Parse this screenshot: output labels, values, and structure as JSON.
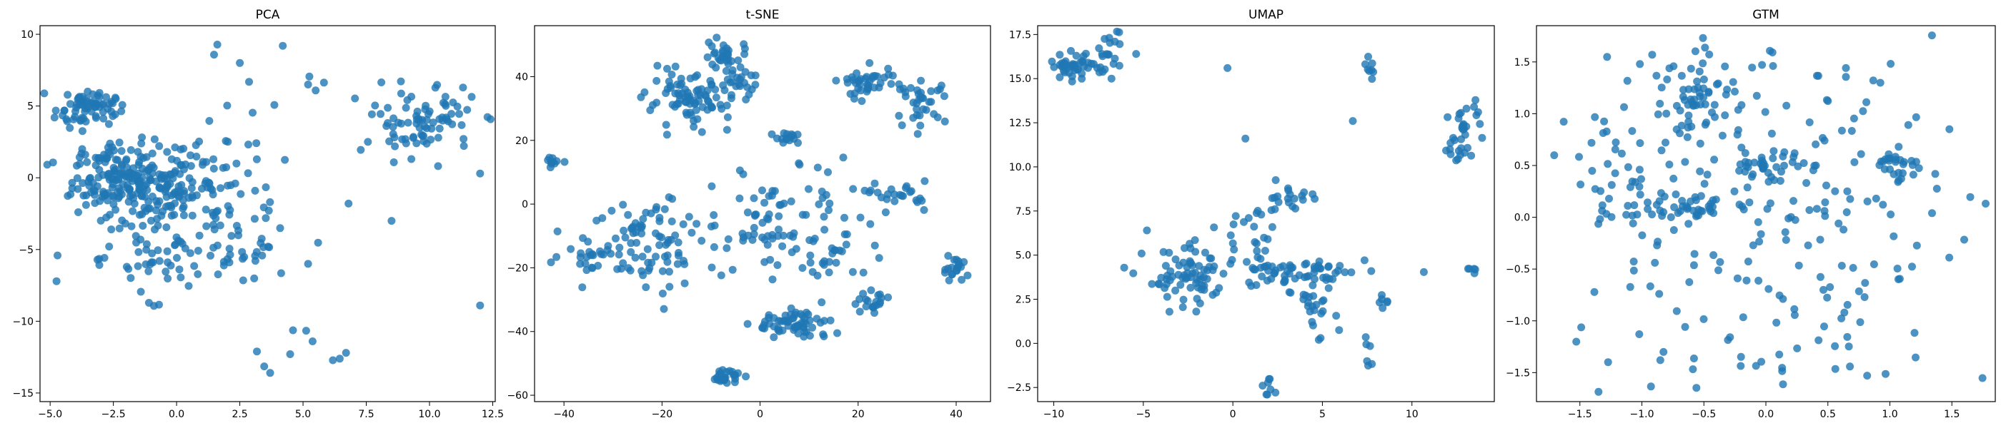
{
  "chart_data": [
    {
      "type": "scatter",
      "title": "PCA",
      "color": "#1f77b4",
      "xlim": [
        -5.4,
        12.6
      ],
      "ylim": [
        -15.6,
        10.6
      ],
      "xticks": [
        {
          "v": -5.0,
          "label": "−5.0"
        },
        {
          "v": -2.5,
          "label": "−2.5"
        },
        {
          "v": 0.0,
          "label": "0.0"
        },
        {
          "v": 2.5,
          "label": "2.5"
        },
        {
          "v": 5.0,
          "label": "5.0"
        },
        {
          "v": 7.5,
          "label": "7.5"
        },
        {
          "v": 10.0,
          "label": "10.0"
        },
        {
          "v": 12.5,
          "label": "12.5"
        }
      ],
      "yticks": [
        {
          "v": -15,
          "label": "−15"
        },
        {
          "v": -10,
          "label": "−10"
        },
        {
          "v": -5,
          "label": "−5"
        },
        {
          "v": 0,
          "label": "0"
        },
        {
          "v": 5,
          "label": "5"
        },
        {
          "v": 10,
          "label": "10"
        }
      ],
      "clusters": [
        {
          "x": -0.5,
          "y": -0.5,
          "sx": 1.8,
          "sy": 1.5,
          "n": 220
        },
        {
          "x": -3.6,
          "y": 4.9,
          "sx": 0.6,
          "sy": 0.6,
          "n": 70
        },
        {
          "x": -2.5,
          "y": 0.0,
          "sx": 1.0,
          "sy": 1.2,
          "n": 80
        },
        {
          "x": -1.0,
          "y": -5.5,
          "sx": 1.5,
          "sy": 1.3,
          "n": 60
        },
        {
          "x": 2.5,
          "y": -5.0,
          "sx": 1.2,
          "sy": 1.5,
          "n": 30
        },
        {
          "x": 9.8,
          "y": 4.0,
          "sx": 1.0,
          "sy": 1.2,
          "n": 80
        },
        {
          "x": 4.5,
          "y": 5.5,
          "sx": 2.0,
          "sy": 2.0,
          "n": 14
        },
        {
          "x": 5.0,
          "y": -12.5,
          "sx": 1.0,
          "sy": 1.0,
          "n": 8
        }
      ],
      "points": [
        [
          3.7,
          -13.6
        ],
        [
          12.0,
          -8.9
        ],
        [
          6.7,
          -12.2
        ],
        [
          8.5,
          -3.0
        ],
        [
          12.0,
          0.3
        ],
        [
          4.2,
          9.2
        ],
        [
          2.5,
          8.0
        ],
        [
          5.2,
          6.5
        ],
        [
          6.8,
          -1.8
        ],
        [
          5.2,
          -6.0
        ]
      ]
    },
    {
      "type": "scatter",
      "title": "t-SNE",
      "color": "#1f77b4",
      "xlim": [
        -46,
        47
      ],
      "ylim": [
        -62,
        56
      ],
      "xticks": [
        {
          "v": -40,
          "label": "−40"
        },
        {
          "v": -20,
          "label": "−20"
        },
        {
          "v": 0,
          "label": "0"
        },
        {
          "v": 20,
          "label": "20"
        },
        {
          "v": 40,
          "label": "40"
        }
      ],
      "yticks": [
        {
          "v": -60,
          "label": "−60"
        },
        {
          "v": -40,
          "label": "−40"
        },
        {
          "v": -20,
          "label": "−20"
        },
        {
          "v": 0,
          "label": "0"
        },
        {
          "v": 20,
          "label": "20"
        },
        {
          "v": 40,
          "label": "40"
        }
      ],
      "clusters": [
        {
          "x": -7,
          "y": 47,
          "sx": 2.5,
          "sy": 2.5,
          "n": 30
        },
        {
          "x": -15,
          "y": 32,
          "sx": 4.0,
          "sy": 4.0,
          "n": 80
        },
        {
          "x": -5,
          "y": 38,
          "sx": 2.0,
          "sy": 2.0,
          "n": 25
        },
        {
          "x": 22,
          "y": 38,
          "sx": 3.0,
          "sy": 3.0,
          "n": 40
        },
        {
          "x": 33,
          "y": 32,
          "sx": 2.5,
          "sy": 3.0,
          "n": 35
        },
        {
          "x": 6,
          "y": 21,
          "sx": 1.5,
          "sy": 1.2,
          "n": 15
        },
        {
          "x": -42,
          "y": 13,
          "sx": 1.0,
          "sy": 0.8,
          "n": 10
        },
        {
          "x": -22,
          "y": -12,
          "sx": 6.0,
          "sy": 8.0,
          "n": 80
        },
        {
          "x": -35,
          "y": -15,
          "sx": 3.0,
          "sy": 3.0,
          "n": 25
        },
        {
          "x": 0,
          "y": -5,
          "sx": 6.0,
          "sy": 10.0,
          "n": 60
        },
        {
          "x": 15,
          "y": -10,
          "sx": 6.0,
          "sy": 9.0,
          "n": 50
        },
        {
          "x": 7,
          "y": -38,
          "sx": 4.0,
          "sy": 2.5,
          "n": 60
        },
        {
          "x": 23,
          "y": -31,
          "sx": 2.0,
          "sy": 1.5,
          "n": 20
        },
        {
          "x": 28,
          "y": 3,
          "sx": 3.0,
          "sy": 2.0,
          "n": 25
        },
        {
          "x": -7,
          "y": -54,
          "sx": 1.5,
          "sy": 1.2,
          "n": 25
        },
        {
          "x": 40,
          "y": -20,
          "sx": 1.5,
          "sy": 2.0,
          "n": 20
        }
      ],
      "points": []
    },
    {
      "type": "scatter",
      "title": "UMAP",
      "color": "#1f77b4",
      "xlim": [
        -10.9,
        14.6
      ],
      "ylim": [
        -3.3,
        18.0
      ],
      "xticks": [
        {
          "v": -10,
          "label": "−10"
        },
        {
          "v": -5,
          "label": "−5"
        },
        {
          "v": 0,
          "label": "0"
        },
        {
          "v": 5,
          "label": "5"
        },
        {
          "v": 10,
          "label": "10"
        }
      ],
      "yticks": [
        {
          "v": -2.5,
          "label": "−2.5"
        },
        {
          "v": 0.0,
          "label": "0.0"
        },
        {
          "v": 2.5,
          "label": "2.5"
        },
        {
          "v": 5.0,
          "label": "5.0"
        },
        {
          "v": 7.5,
          "label": "7.5"
        },
        {
          "v": 10.0,
          "label": "10.0"
        },
        {
          "v": 12.5,
          "label": "12.5"
        },
        {
          "v": 15.0,
          "label": "15.0"
        },
        {
          "v": 17.5,
          "label": "17.5"
        }
      ],
      "clusters": [
        {
          "x": -9.0,
          "y": 15.7,
          "sx": 0.6,
          "sy": 0.35,
          "n": 40
        },
        {
          "x": -7.0,
          "y": 16.2,
          "sx": 0.4,
          "sy": 0.8,
          "n": 25
        },
        {
          "x": 13.0,
          "y": 12.3,
          "sx": 0.4,
          "sy": 0.8,
          "n": 25
        },
        {
          "x": 12.4,
          "y": 11.1,
          "sx": 0.3,
          "sy": 0.4,
          "n": 10
        },
        {
          "x": 7.6,
          "y": 15.4,
          "sx": 0.15,
          "sy": 0.3,
          "n": 8
        },
        {
          "x": -2.5,
          "y": 3.6,
          "sx": 1.2,
          "sy": 0.9,
          "n": 70
        },
        {
          "x": 3.5,
          "y": 4.0,
          "sx": 2.0,
          "sy": 0.5,
          "n": 70
        },
        {
          "x": 0.8,
          "y": 5.8,
          "sx": 0.8,
          "sy": 1.0,
          "n": 20
        },
        {
          "x": 3.0,
          "y": 8.3,
          "sx": 0.8,
          "sy": 0.4,
          "n": 20
        },
        {
          "x": 4.5,
          "y": 2.0,
          "sx": 0.6,
          "sy": 0.6,
          "n": 20
        },
        {
          "x": 2.0,
          "y": -2.5,
          "sx": 0.2,
          "sy": 0.2,
          "n": 8
        },
        {
          "x": 7.6,
          "y": -0.5,
          "sx": 0.15,
          "sy": 0.5,
          "n": 6
        },
        {
          "x": 13.3,
          "y": 4.2,
          "sx": 0.15,
          "sy": 0.15,
          "n": 5
        },
        {
          "x": 8.5,
          "y": 2.3,
          "sx": 0.4,
          "sy": 0.2,
          "n": 6
        }
      ],
      "points": [
        [
          -5.4,
          16.4
        ],
        [
          -0.3,
          15.6
        ],
        [
          6.7,
          12.6
        ],
        [
          0.7,
          11.6
        ],
        [
          -2.7,
          5.4
        ],
        [
          -4.8,
          6.4
        ],
        [
          4.8,
          0.2
        ],
        [
          4.9,
          0.3
        ]
      ]
    },
    {
      "type": "scatter",
      "title": "GTM",
      "color": "#1f77b4",
      "xlim": [
        -1.85,
        1.85
      ],
      "ylim": [
        -1.78,
        1.85
      ],
      "xticks": [
        {
          "v": -1.5,
          "label": "−1.5"
        },
        {
          "v": -1.0,
          "label": "−1.0"
        },
        {
          "v": -0.5,
          "label": "−0.5"
        },
        {
          "v": 0.0,
          "label": "0.0"
        },
        {
          "v": 0.5,
          "label": "0.5"
        },
        {
          "v": 1.0,
          "label": "1.0"
        },
        {
          "v": 1.5,
          "label": "1.5"
        }
      ],
      "yticks": [
        {
          "v": -1.5,
          "label": "−1.5"
        },
        {
          "v": -1.0,
          "label": "−1.0"
        },
        {
          "v": -0.5,
          "label": "−0.5"
        },
        {
          "v": 0.0,
          "label": "0.0"
        },
        {
          "v": 0.5,
          "label": "0.5"
        },
        {
          "v": 1.0,
          "label": "1.0"
        },
        {
          "v": 1.5,
          "label": "1.5"
        }
      ],
      "clusters": [
        {
          "x": -0.55,
          "y": 1.15,
          "sx": 0.15,
          "sy": 0.2,
          "n": 50
        },
        {
          "x": -0.55,
          "y": 0.1,
          "sx": 0.25,
          "sy": 0.06,
          "n": 40
        },
        {
          "x": 0.0,
          "y": 0.55,
          "sx": 0.12,
          "sy": 0.1,
          "n": 30
        },
        {
          "x": 1.05,
          "y": 0.5,
          "sx": 0.1,
          "sy": 0.08,
          "n": 25
        },
        {
          "x": -1.1,
          "y": 0.3,
          "sx": 0.2,
          "sy": 0.25,
          "n": 30
        },
        {
          "x": 0.0,
          "y": 0.0,
          "sx": 1.0,
          "sy": 1.0,
          "n": 260
        }
      ],
      "points": []
    }
  ]
}
